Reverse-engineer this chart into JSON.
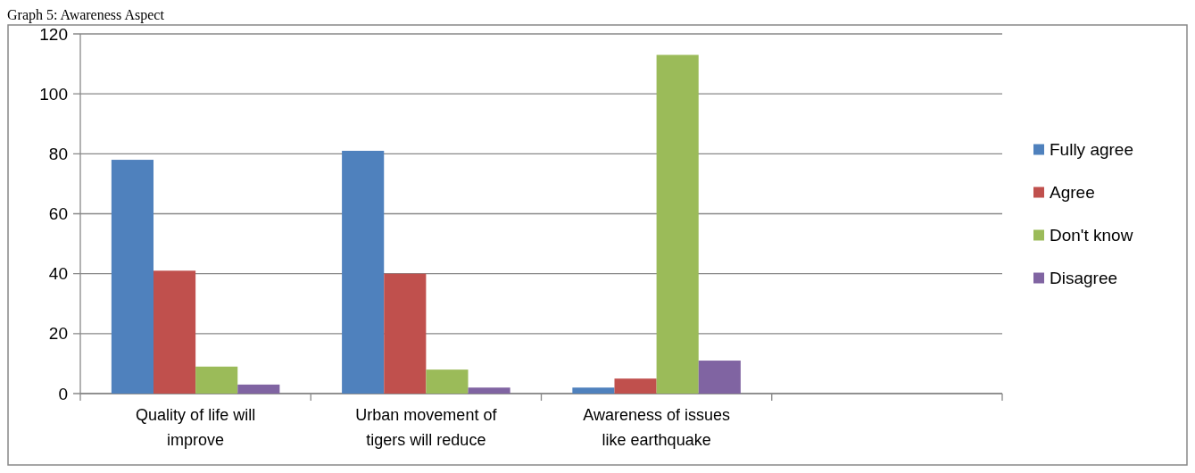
{
  "chart_data": {
    "type": "bar",
    "title": "Graph 5: Awareness Aspect",
    "categories": [
      "Quality of life will improve",
      "Urban movement of tigers will reduce",
      "Awareness of issues like earthquake",
      null
    ],
    "series": [
      {
        "name": "Fully agree",
        "color": "#4f81bd",
        "values": [
          78,
          81,
          2,
          null
        ]
      },
      {
        "name": "Agree",
        "color": "#c0504d",
        "values": [
          41,
          40,
          5,
          null
        ]
      },
      {
        "name": "Don't know",
        "color": "#9bbb59",
        "values": [
          9,
          8,
          113,
          null
        ]
      },
      {
        "name": "Disagree",
        "color": "#8064a2",
        "values": [
          3,
          2,
          11,
          null
        ]
      }
    ],
    "ylim": [
      0,
      120
    ],
    "yticks": [
      0,
      20,
      40,
      60,
      80,
      100,
      120
    ],
    "grid": "y",
    "legend": "right"
  }
}
